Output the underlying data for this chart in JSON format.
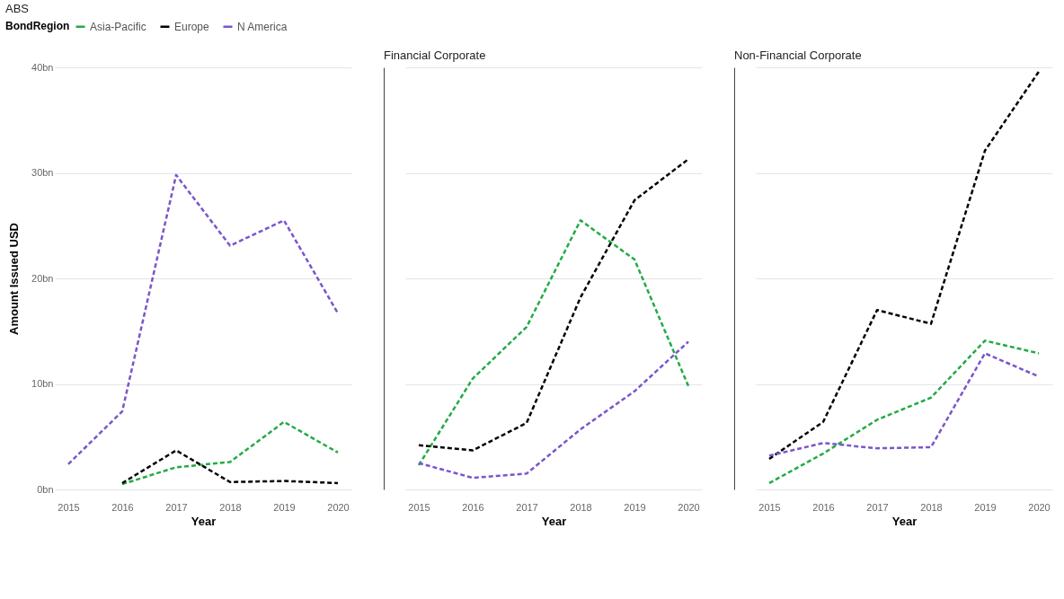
{
  "chart_data": [
    {
      "type": "line",
      "title": "ABS",
      "xlabel": "Year",
      "ylabel": "Amount Issued USD",
      "legend_title": "BondRegion",
      "legend": "top left",
      "grid": "y",
      "line_style": "dashed",
      "categories": [
        "2015",
        "2016",
        "2017",
        "2018",
        "2019",
        "2020"
      ],
      "ylim": [
        0,
        40
      ],
      "yticks": [
        {
          "value": 0,
          "label": "0bn"
        },
        {
          "value": 10,
          "label": "10bn"
        },
        {
          "value": 20,
          "label": "20bn"
        },
        {
          "value": 30,
          "label": "30bn"
        },
        {
          "value": 40,
          "label": "40bn"
        }
      ],
      "series": [
        {
          "name": "Asia-Pacific",
          "color": "#22ab45",
          "values": [
            null,
            0.5,
            2.1,
            2.6,
            6.4,
            3.5
          ]
        },
        {
          "name": "Europe",
          "color": "#000000",
          "values": [
            null,
            0.6,
            3.7,
            0.7,
            0.8,
            0.6
          ]
        },
        {
          "name": "N America",
          "color": "#7b55cc",
          "values": [
            2.4,
            7.4,
            29.8,
            23.1,
            25.5,
            16.7
          ]
        }
      ]
    },
    {
      "type": "line",
      "title": "Financial Corporate",
      "xlabel": "Year",
      "grid": "y",
      "line_style": "dashed",
      "tick_labels": "x",
      "categories": [
        "2015",
        "2016",
        "2017",
        "2018",
        "2019",
        "2020"
      ],
      "ylim": [
        0,
        40
      ],
      "yticks": [
        0,
        10,
        20,
        30,
        40
      ],
      "series": [
        {
          "name": "Asia-Pacific",
          "color": "#22ab45",
          "values": [
            2.3,
            10.5,
            15.4,
            25.5,
            21.8,
            9.8
          ]
        },
        {
          "name": "Europe",
          "color": "#000000",
          "values": [
            4.2,
            3.7,
            6.3,
            18.2,
            27.4,
            31.3
          ]
        },
        {
          "name": "N America",
          "color": "#7b55cc",
          "values": [
            2.5,
            1.1,
            1.5,
            5.7,
            9.3,
            14.0
          ]
        }
      ]
    },
    {
      "type": "line",
      "title": "Non-Financial Corporate",
      "xlabel": "Year",
      "grid": "y",
      "line_style": "dashed",
      "tick_labels": "x",
      "categories": [
        "2015",
        "2016",
        "2017",
        "2018",
        "2019",
        "2020"
      ],
      "ylim": [
        0,
        40
      ],
      "yticks": [
        0,
        10,
        20,
        30,
        40
      ],
      "series": [
        {
          "name": "Asia-Pacific",
          "color": "#22ab45",
          "values": [
            0.6,
            3.4,
            6.6,
            8.7,
            14.1,
            12.9
          ]
        },
        {
          "name": "Europe",
          "color": "#000000",
          "values": [
            2.9,
            6.4,
            17.0,
            15.7,
            32.1,
            39.6
          ]
        },
        {
          "name": "N America",
          "color": "#7b55cc",
          "values": [
            3.2,
            4.4,
            3.9,
            4.0,
            12.9,
            10.7
          ]
        }
      ]
    }
  ]
}
